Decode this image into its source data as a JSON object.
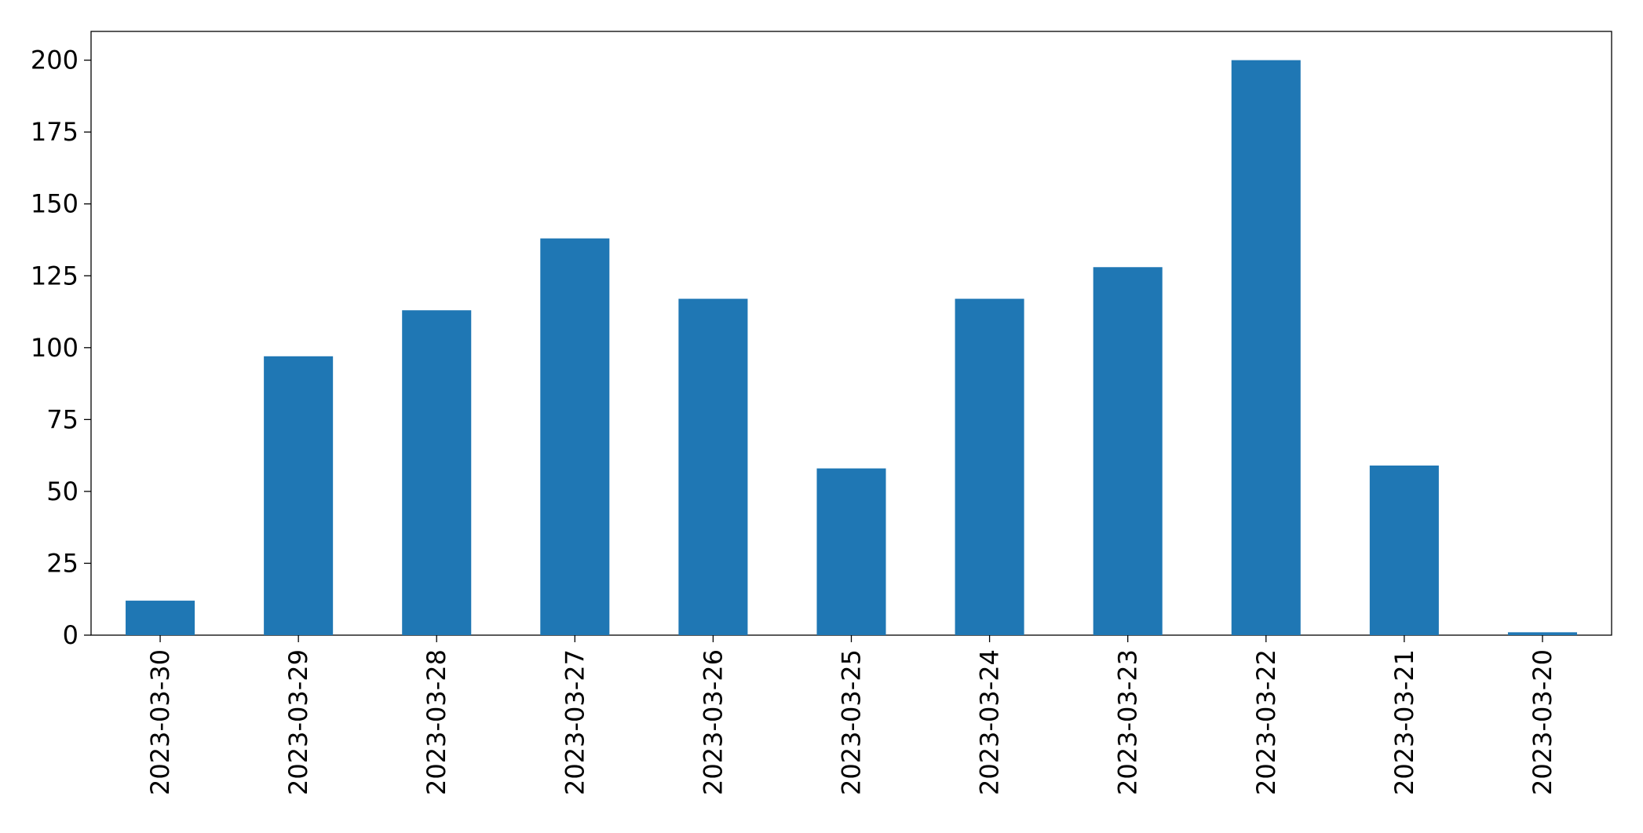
{
  "chart_data": {
    "type": "bar",
    "categories": [
      "2023-03-30",
      "2023-03-29",
      "2023-03-28",
      "2023-03-27",
      "2023-03-26",
      "2023-03-25",
      "2023-03-24",
      "2023-03-23",
      "2023-03-22",
      "2023-03-21",
      "2023-03-20"
    ],
    "values": [
      12,
      97,
      113,
      138,
      117,
      58,
      117,
      128,
      200,
      59,
      1
    ],
    "color": "#1f77b4",
    "ylim": [
      0,
      210
    ],
    "yticks": [
      0,
      25,
      50,
      75,
      100,
      125,
      150,
      175,
      200
    ],
    "grid": false
  }
}
